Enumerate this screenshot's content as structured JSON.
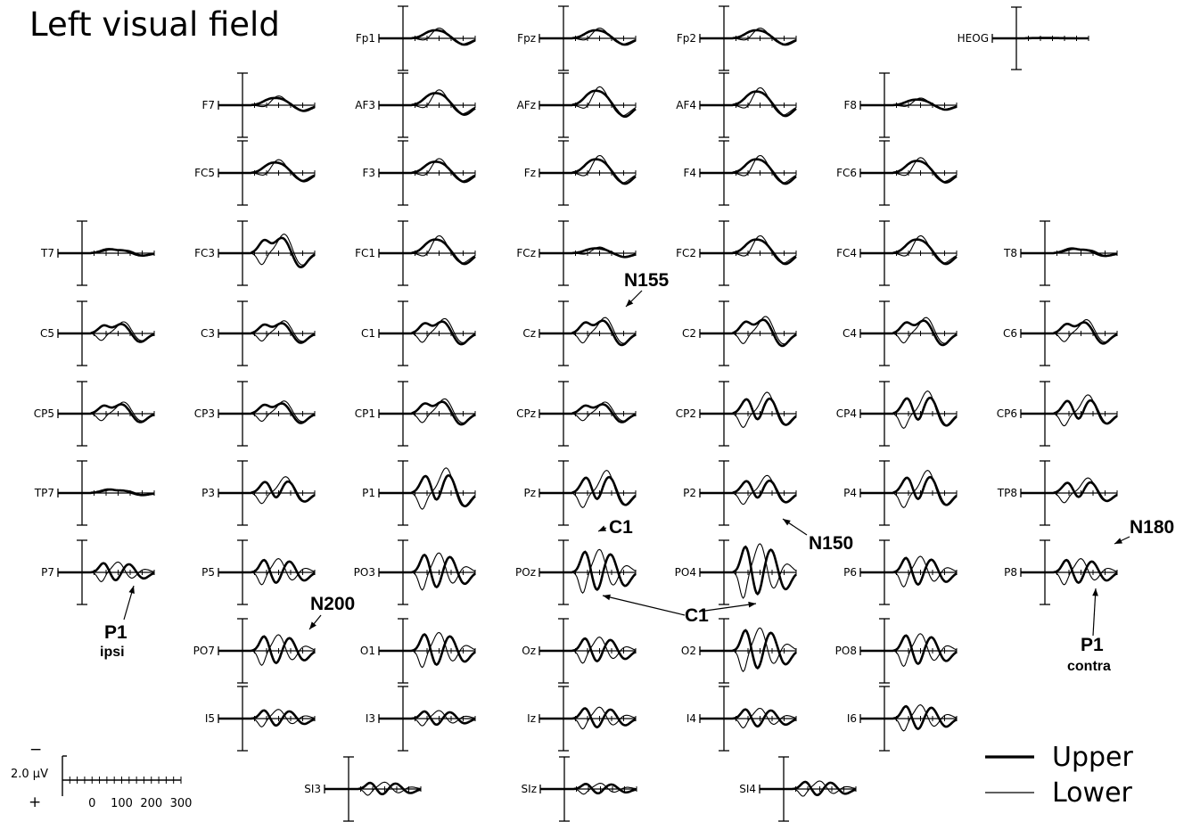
{
  "title": "Left visual field",
  "chart_data": {
    "type": "line",
    "x_ticks": [
      "0",
      "100",
      "200",
      "300"
    ],
    "x_unit": "",
    "y_scale_label": "2.0 μV",
    "y_sign_top": "−",
    "y_sign_bottom": "+",
    "series": [
      {
        "name": "Upper",
        "color": "#000000",
        "style": "thick"
      },
      {
        "name": "Lower",
        "color": "#000000",
        "style": "thin"
      }
    ],
    "electrodes": [
      {
        "name": "Fp1",
        "amp": 0.5,
        "shape": "frontal",
        "upper": null,
        "lower": null
      },
      {
        "name": "Fpz",
        "amp": 0.5,
        "shape": "frontal"
      },
      {
        "name": "Fp2",
        "amp": 0.5,
        "shape": "frontal"
      },
      {
        "name": "HEOG",
        "amp": 0.05,
        "shape": "flat"
      },
      {
        "name": "F7",
        "amp": 0.45,
        "shape": "frontal"
      },
      {
        "name": "AF3",
        "amp": 0.75,
        "shape": "frontal"
      },
      {
        "name": "AFz",
        "amp": 0.9,
        "shape": "frontal"
      },
      {
        "name": "AF4",
        "amp": 0.85,
        "shape": "frontal"
      },
      {
        "name": "F8",
        "amp": 0.35,
        "shape": "frontal"
      },
      {
        "name": "FC5",
        "amp": 0.65,
        "shape": "frontal"
      },
      {
        "name": "F3",
        "amp": 0.7,
        "shape": "frontal"
      },
      {
        "name": "Fz",
        "amp": 0.85,
        "shape": "frontal"
      },
      {
        "name": "F4",
        "amp": 0.85,
        "shape": "frontal"
      },
      {
        "name": "FC6",
        "amp": 0.75,
        "shape": "frontal"
      },
      {
        "name": "T7",
        "amp": 0.35,
        "shape": "temporal"
      },
      {
        "name": "FC3",
        "amp": 0.9,
        "shape": "central"
      },
      {
        "name": "FC1",
        "amp": 0.85,
        "shape": "frontal"
      },
      {
        "name": "FCz",
        "amp": 0.3,
        "shape": "frontal"
      },
      {
        "name": "FC2",
        "amp": 0.85,
        "shape": "frontal"
      },
      {
        "name": "FC4",
        "amp": 0.85,
        "shape": "frontal"
      },
      {
        "name": "T8",
        "amp": 0.4,
        "shape": "temporal"
      },
      {
        "name": "C5",
        "amp": 0.55,
        "shape": "central"
      },
      {
        "name": "C3",
        "amp": 0.6,
        "shape": "central"
      },
      {
        "name": "C1",
        "amp": 0.7,
        "shape": "central"
      },
      {
        "name": "Cz",
        "amp": 0.75,
        "shape": "central"
      },
      {
        "name": "C2",
        "amp": 0.8,
        "shape": "central"
      },
      {
        "name": "C4",
        "amp": 0.75,
        "shape": "central"
      },
      {
        "name": "C6",
        "amp": 0.65,
        "shape": "central"
      },
      {
        "name": "CP5",
        "amp": 0.55,
        "shape": "central"
      },
      {
        "name": "CP3",
        "amp": 0.6,
        "shape": "central"
      },
      {
        "name": "CP1",
        "amp": 0.7,
        "shape": "central"
      },
      {
        "name": "CPz",
        "amp": 0.55,
        "shape": "central"
      },
      {
        "name": "CP2",
        "amp": 0.85,
        "shape": "parietal"
      },
      {
        "name": "CP4",
        "amp": 0.9,
        "shape": "parietal"
      },
      {
        "name": "CP6",
        "amp": 0.75,
        "shape": "parietal"
      },
      {
        "name": "TP7",
        "amp": 0.3,
        "shape": "temporal"
      },
      {
        "name": "P3",
        "amp": 0.65,
        "shape": "parietal"
      },
      {
        "name": "P1",
        "amp": 1.0,
        "shape": "parietal"
      },
      {
        "name": "Pz",
        "amp": 0.9,
        "shape": "parietal"
      },
      {
        "name": "P2",
        "amp": 0.7,
        "shape": "parietal"
      },
      {
        "name": "P4",
        "amp": 0.9,
        "shape": "parietal"
      },
      {
        "name": "TP8",
        "amp": 0.6,
        "shape": "parietal"
      },
      {
        "name": "P7",
        "amp": 0.45,
        "shape": "occipital"
      },
      {
        "name": "P5",
        "amp": 0.6,
        "shape": "occipital"
      },
      {
        "name": "PO3",
        "amp": 0.85,
        "shape": "occipital"
      },
      {
        "name": "POz",
        "amp": 1.0,
        "shape": "occipital"
      },
      {
        "name": "PO4",
        "amp": 1.25,
        "shape": "occipital"
      },
      {
        "name": "P6",
        "amp": 0.7,
        "shape": "occipital"
      },
      {
        "name": "P8",
        "amp": 0.6,
        "shape": "occipital"
      },
      {
        "name": "PO7",
        "amp": 0.7,
        "shape": "occipital"
      },
      {
        "name": "O1",
        "amp": 0.8,
        "shape": "occipital"
      },
      {
        "name": "Oz",
        "amp": 0.6,
        "shape": "occipital"
      },
      {
        "name": "O2",
        "amp": 1.0,
        "shape": "occipital"
      },
      {
        "name": "PO8",
        "amp": 0.75,
        "shape": "occipital"
      },
      {
        "name": "I5",
        "amp": 0.4,
        "shape": "occipital"
      },
      {
        "name": "I3",
        "amp": 0.35,
        "shape": "occipital"
      },
      {
        "name": "Iz",
        "amp": 0.5,
        "shape": "occipital"
      },
      {
        "name": "I4",
        "amp": 0.45,
        "shape": "occipital"
      },
      {
        "name": "I6",
        "amp": 0.6,
        "shape": "occipital"
      },
      {
        "name": "SI3",
        "amp": 0.3,
        "shape": "occipital"
      },
      {
        "name": "SIz",
        "amp": 0.25,
        "shape": "occipital"
      },
      {
        "name": "SI4",
        "amp": 0.35,
        "shape": "occipital"
      }
    ],
    "annotations": [
      {
        "text": "N155",
        "electrode": "Cz"
      },
      {
        "text": "C1",
        "electrode": "POz"
      },
      {
        "text": "N150",
        "electrode": "PO4"
      },
      {
        "text": "N180",
        "electrode": "P8"
      },
      {
        "text": "C1",
        "electrode": "POz, PO4"
      },
      {
        "text": "N200",
        "electrode": "P5"
      },
      {
        "text": "P1",
        "sub": "ipsi",
        "electrode": "P7"
      },
      {
        "text": "P1",
        "sub": "contra",
        "electrode": "P8"
      }
    ]
  }
}
